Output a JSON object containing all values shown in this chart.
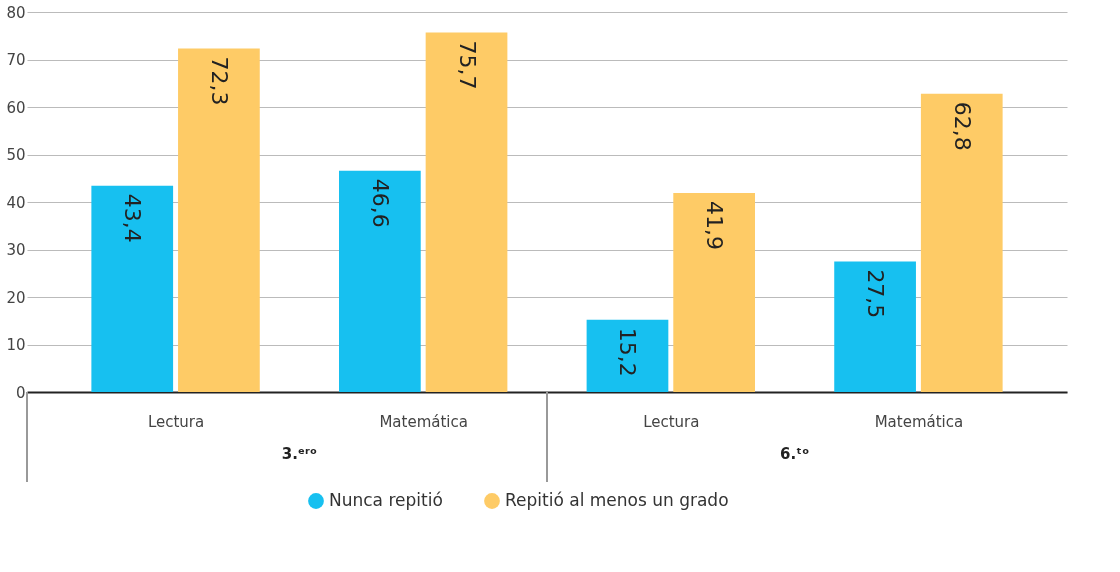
{
  "chart_data": {
    "type": "bar",
    "categories": [
      "Lectura",
      "Matemática",
      "Lectura",
      "Matemática"
    ],
    "series": [
      {
        "name": "Nunca repitió",
        "color": "#17c0f0",
        "values": [
          43.4,
          46.6,
          15.2,
          27.5
        ],
        "value_labels": [
          "43,4",
          "46,6",
          "15,2",
          "27,5"
        ]
      },
      {
        "name": "Repitió al menos un grado",
        "color": "#fecb66",
        "values": [
          72.3,
          75.7,
          41.9,
          62.8
        ],
        "value_labels": [
          "72,3",
          "75,7",
          "41,9",
          "62,8"
        ]
      }
    ],
    "annotations": [
      "3.ᵉʳᵒ",
      "6.ᵗᵒ"
    ],
    "ylim": [
      0,
      80
    ],
    "yticks": [
      0,
      10,
      20,
      30,
      40,
      50,
      60,
      70,
      80
    ],
    "grid": "y",
    "legend": "bottom"
  }
}
